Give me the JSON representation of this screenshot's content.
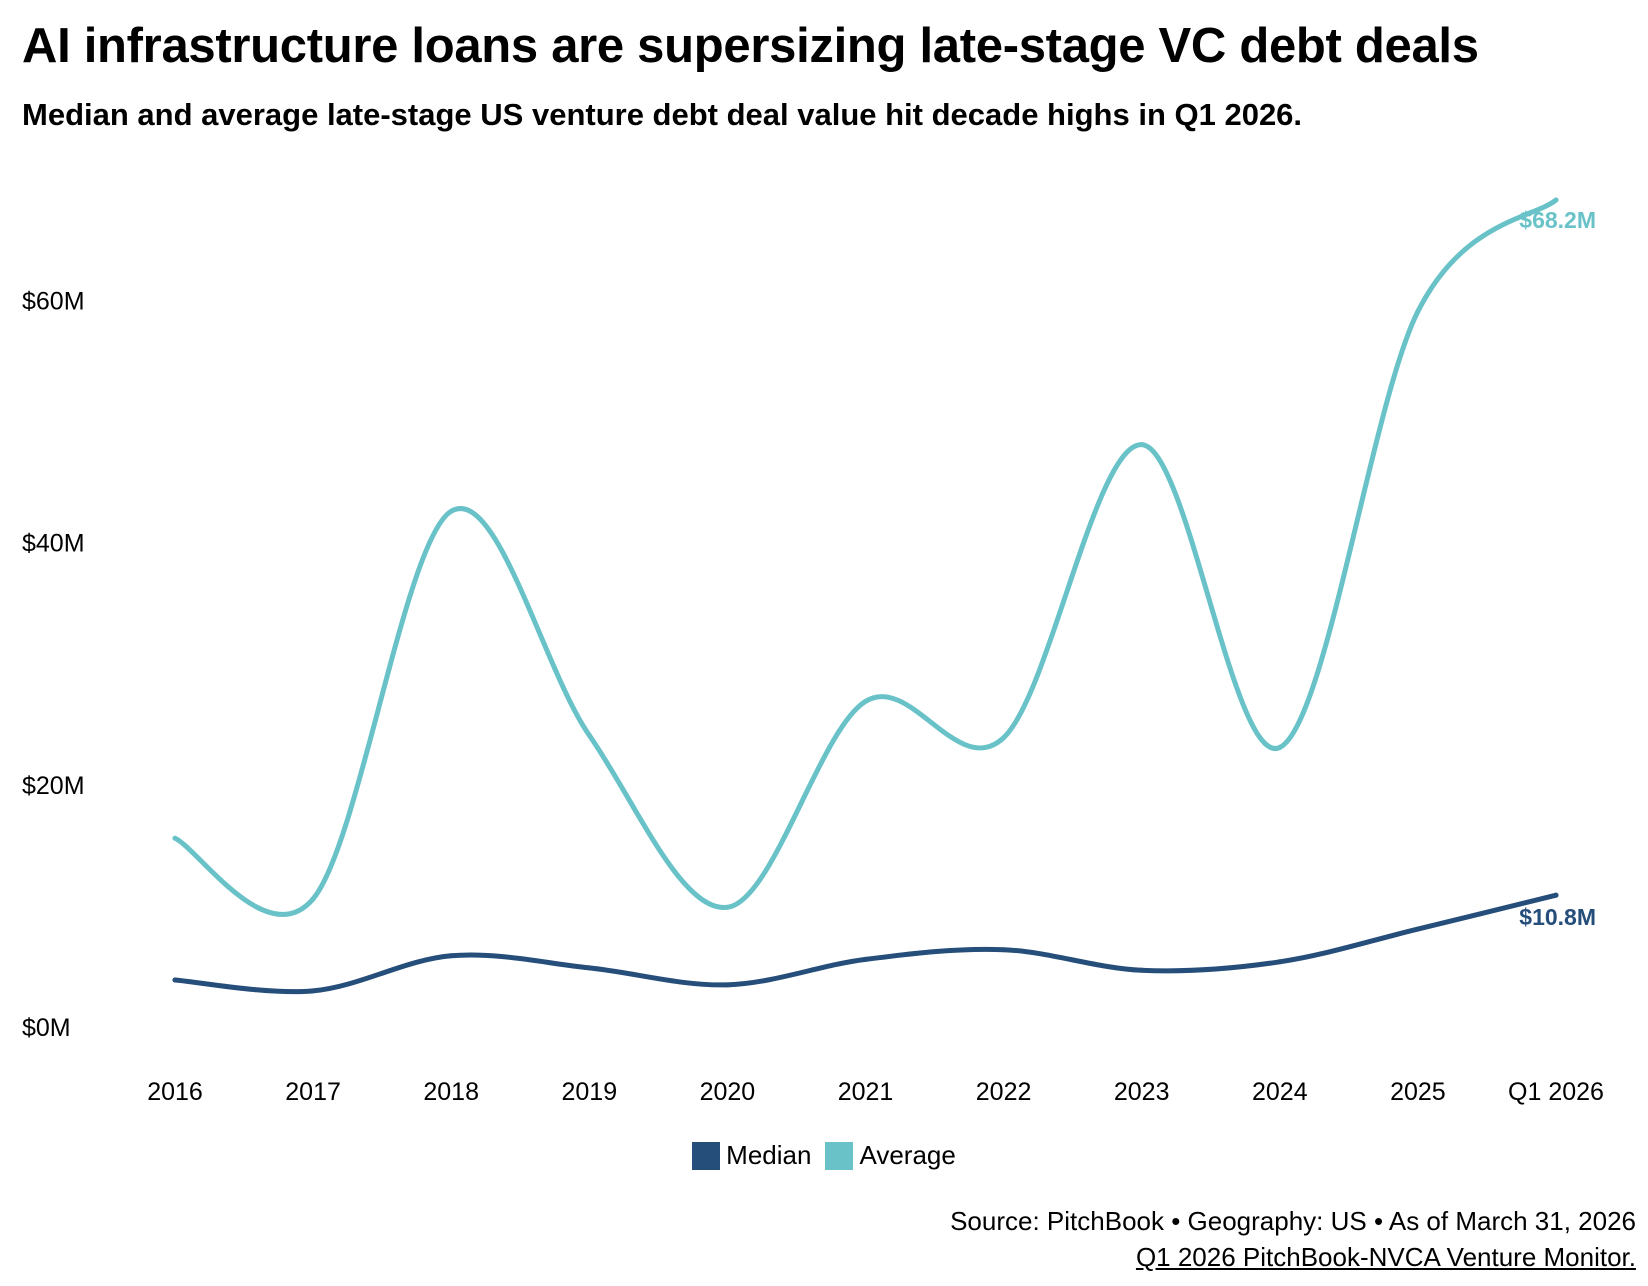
{
  "chart_data": {
    "type": "line",
    "title": "AI infrastructure loans are supersizing late-stage VC debt deals",
    "subtitle": "Median and average late-stage US venture debt deal value hit decade highs in Q1 2026.",
    "categories": [
      "2016",
      "2017",
      "2018",
      "2019",
      "2020",
      "2021",
      "2022",
      "2023",
      "2024",
      "2025",
      "Q1 2026"
    ],
    "series": [
      {
        "name": "Median",
        "color": "#264e7b",
        "values": [
          3.8,
          2.9,
          5.8,
          4.8,
          3.4,
          5.5,
          6.3,
          4.6,
          5.3,
          8.0,
          10.8
        ],
        "end_label": "$10.8M"
      },
      {
        "name": "Average",
        "color": "#68c2c8",
        "values": [
          15.5,
          10.5,
          42.5,
          24.0,
          9.8,
          26.8,
          23.8,
          48.0,
          23.0,
          59.0,
          68.2
        ],
        "end_label": "$68.2M"
      }
    ],
    "yticks": [
      {
        "value": 0,
        "label": "$0M"
      },
      {
        "value": 20,
        "label": "$20M"
      },
      {
        "value": 40,
        "label": "$40M"
      },
      {
        "value": 60,
        "label": "$60M"
      }
    ],
    "ylim": [
      0,
      68.2
    ],
    "xlabel": "",
    "ylabel": "",
    "grid": false,
    "legend_position": "bottom-center"
  },
  "legend": {
    "items": [
      {
        "label": "Median",
        "color": "#264e7b"
      },
      {
        "label": "Average",
        "color": "#68c2c8"
      }
    ]
  },
  "footer": {
    "source_line": "Source: PitchBook • Geography: US • As of March 31, 2026",
    "report_link": "Q1 2026 PitchBook-NVCA Venture Monitor."
  }
}
